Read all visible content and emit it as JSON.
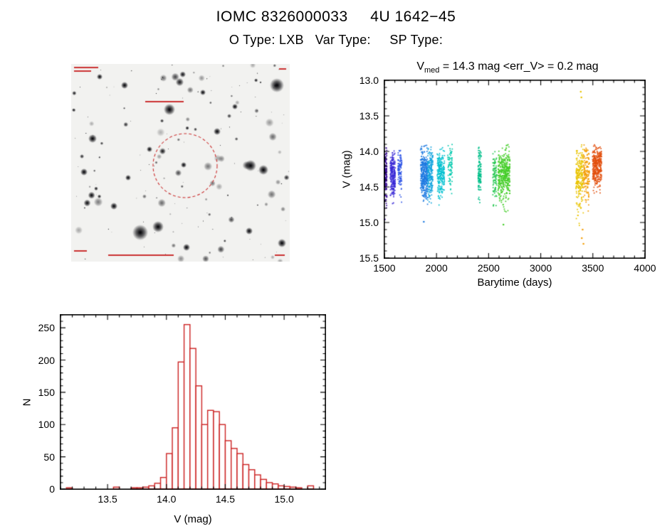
{
  "page": {
    "title": "IOMC 8326000033     4U 1642−45",
    "subtitle": "O Type: LXB   Var Type:     SP Type:"
  },
  "finder_chart": {
    "description": "inverted grayscale optical star field with source marked by dashed circle",
    "circle_color": "#cc3333",
    "annotation_color": "#cc3333"
  },
  "chart_data": [
    {
      "type": "scatter",
      "name": "light_curve",
      "title_parts": {
        "prefix": "V",
        "prefix_sub": "med",
        "rest": " = 14.3 mag <err_V> = 0.2 mag"
      },
      "xlabel": "Barytime (days)",
      "ylabel": "V (mag)",
      "xlim": [
        1500,
        4000
      ],
      "ylim_top_to_bottom": [
        13.0,
        15.5
      ],
      "xticks": [
        "1500",
        "2000",
        "2500",
        "3000",
        "3500",
        "4000"
      ],
      "yticks": [
        "13.0",
        "13.5",
        "14.0",
        "14.5",
        "15.0",
        "15.5"
      ],
      "x_minor_step": 100,
      "y_minor_step": 0.1,
      "y_axis_inverted": true,
      "clusters": [
        {
          "x": [
            1500,
            1524
          ],
          "n": 150,
          "v_mean": 14.32,
          "v_sigma": 0.18,
          "v_range": [
            13.93,
            14.97
          ],
          "color": "#3a0d96"
        },
        {
          "x": [
            1556,
            1604
          ],
          "n": 230,
          "v_mean": 14.33,
          "v_sigma": 0.17,
          "v_range": [
            13.95,
            14.92
          ],
          "color": "#3b2bd6"
        },
        {
          "x": [
            1630,
            1666
          ],
          "n": 95,
          "v_mean": 14.27,
          "v_sigma": 0.15,
          "v_range": [
            13.98,
            14.75
          ],
          "color": "#2f55e6"
        },
        {
          "x": [
            1846,
            1914
          ],
          "n": 330,
          "v_mean": 14.32,
          "v_sigma": 0.18,
          "v_range": [
            13.9,
            15.0
          ],
          "color": "#1d79e0"
        },
        {
          "x": [
            1914,
            1964
          ],
          "n": 210,
          "v_mean": 14.3,
          "v_sigma": 0.17,
          "v_range": [
            13.9,
            14.96
          ],
          "color": "#16a4de"
        },
        {
          "x": [
            2006,
            2076
          ],
          "n": 225,
          "v_mean": 14.3,
          "v_sigma": 0.16,
          "v_range": [
            13.94,
            14.9
          ],
          "color": "#00c0d0"
        },
        {
          "x": [
            2106,
            2152
          ],
          "n": 75,
          "v_mean": 14.22,
          "v_sigma": 0.15,
          "v_range": [
            13.9,
            14.62
          ],
          "color": "#00c9ae"
        },
        {
          "x": [
            2398,
            2428
          ],
          "n": 115,
          "v_mean": 14.3,
          "v_sigma": 0.17,
          "v_range": [
            13.9,
            14.78
          ],
          "color": "#00bf8a"
        },
        {
          "x": [
            2540,
            2578
          ],
          "n": 95,
          "v_mean": 14.36,
          "v_sigma": 0.16,
          "v_range": [
            14.0,
            14.86
          ],
          "color": "#27c752"
        },
        {
          "x": [
            2590,
            2704
          ],
          "n": 390,
          "v_mean": 14.33,
          "v_sigma": 0.18,
          "v_range": [
            13.9,
            15.05
          ],
          "color": "#43cd28"
        },
        {
          "x": [
            3338,
            3408
          ],
          "n": 235,
          "v_mean": 14.36,
          "v_sigma": 0.22,
          "v_range": [
            13.9,
            15.3
          ],
          "color": "#e9c400"
        },
        {
          "x": [
            3408,
            3468
          ],
          "n": 145,
          "v_mean": 14.3,
          "v_sigma": 0.2,
          "v_range": [
            13.9,
            15.0
          ],
          "color": "#f39c00"
        },
        {
          "x": [
            3496,
            3584
          ],
          "n": 340,
          "v_mean": 14.22,
          "v_sigma": 0.15,
          "v_range": [
            13.87,
            14.66
          ],
          "color": "#e2500f"
        }
      ],
      "outliers": [
        {
          "x": 3384,
          "v": 13.16,
          "color": "#e9c400"
        },
        {
          "x": 3390,
          "v": 13.24,
          "color": "#e9c400"
        },
        {
          "x": 3402,
          "v": 15.1,
          "color": "#f39c00"
        },
        {
          "x": 3394,
          "v": 15.22,
          "color": "#f39c00"
        },
        {
          "x": 3410,
          "v": 15.3,
          "color": "#f39c00"
        },
        {
          "x": 2642,
          "v": 15.03,
          "color": "#43cd28"
        },
        {
          "x": 1878,
          "v": 14.99,
          "color": "#1d79e0"
        }
      ]
    },
    {
      "type": "bar",
      "name": "magnitude_histogram",
      "xlabel": "V (mag)",
      "ylabel": "N",
      "xlim": [
        13.1,
        15.35
      ],
      "ylim": [
        0,
        270
      ],
      "xticks": [
        "13.5",
        "14.0",
        "14.5",
        "15.0"
      ],
      "yticks": [
        "0",
        "50",
        "100",
        "150",
        "200",
        "250"
      ],
      "x_minor_step": 0.1,
      "y_minor_step": 10,
      "bin_start": 13.15,
      "bin_width": 0.05,
      "counts": [
        2,
        0,
        0,
        0,
        0,
        0,
        0,
        0,
        3,
        0,
        0,
        2,
        2,
        3,
        5,
        9,
        18,
        55,
        95,
        197,
        255,
        218,
        160,
        100,
        122,
        120,
        100,
        75,
        63,
        55,
        38,
        30,
        22,
        15,
        10,
        8,
        5,
        4,
        3,
        2,
        0,
        5,
        0
      ],
      "bar_color": "#cc2222"
    }
  ]
}
